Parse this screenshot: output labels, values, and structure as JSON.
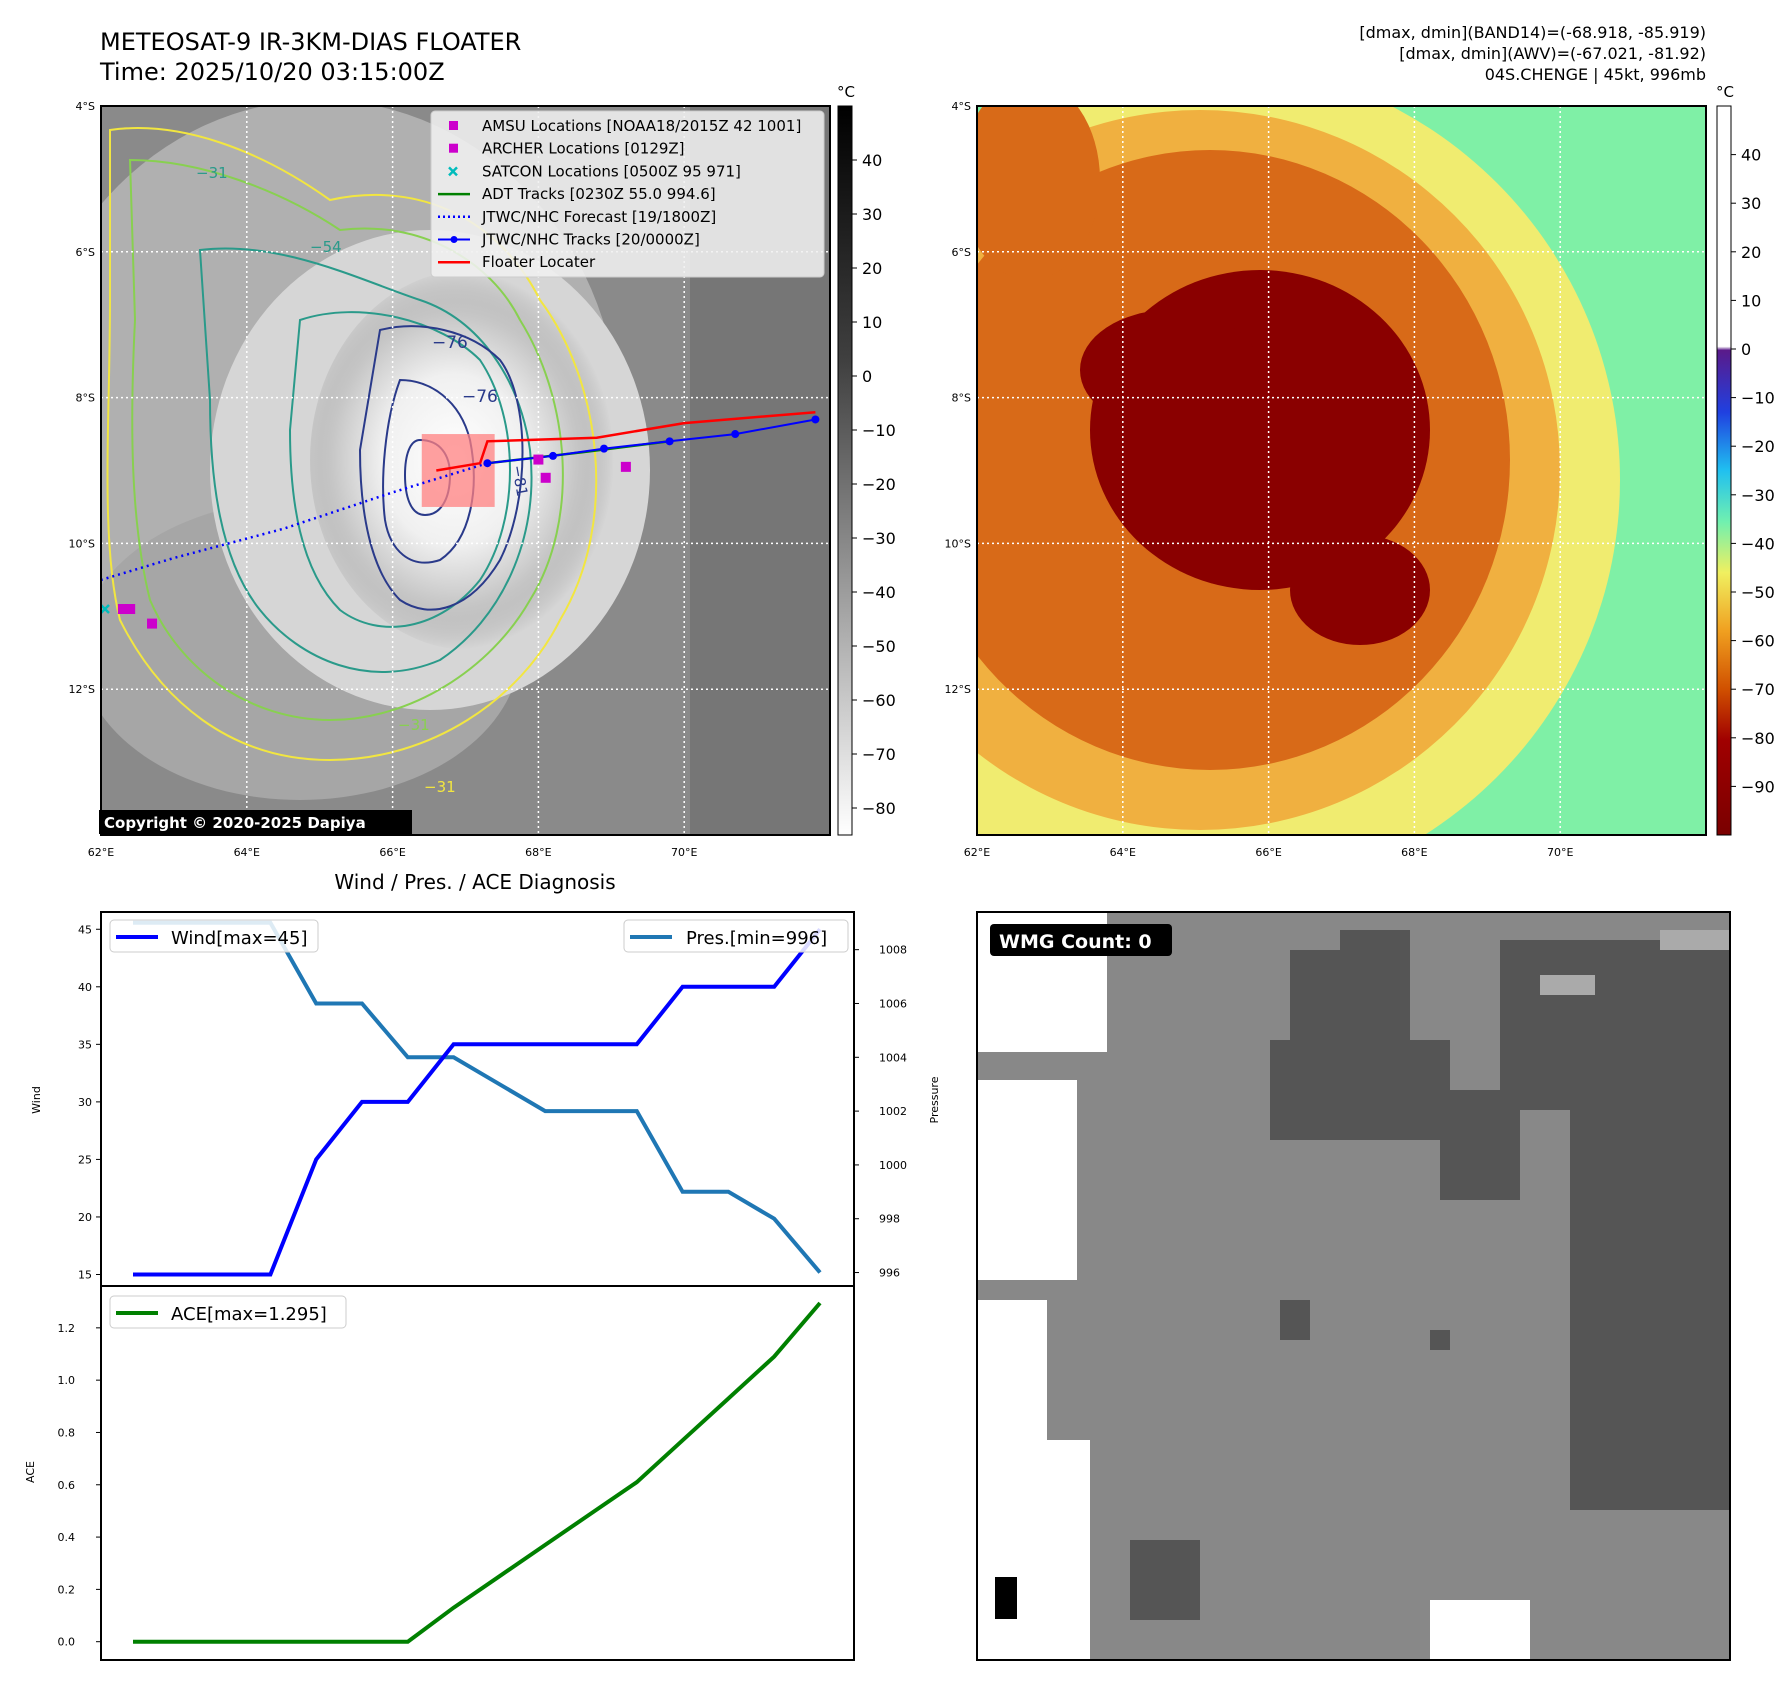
{
  "header": {
    "title_line1": "METEOSAT-9 IR-3KM-DIAS FLOATER",
    "title_line2": "Time: 2025/10/20 03:15:00Z",
    "info_line1": "[dmax, dmin](BAND14)=(-68.918, -85.919)",
    "info_line2": "[dmax, dmin](AWV)=(-67.021, -81.92)",
    "info_line3": "04S.CHENGE | 45kt, 996mb"
  },
  "map_axes": {
    "lat_labels": [
      "4°S",
      "6°S",
      "8°S",
      "10°S",
      "12°S"
    ],
    "lat_values": [
      -4,
      -6,
      -8,
      -10,
      -12
    ],
    "lon_labels": [
      "62°E",
      "64°E",
      "66°E",
      "68°E",
      "70°E"
    ],
    "lon_values": [
      62,
      64,
      66,
      68,
      70
    ],
    "lat_range": [
      -14,
      -4
    ],
    "lon_range": [
      62,
      72
    ]
  },
  "ir_panel": {
    "colorbar_unit": "°C",
    "colorbar_ticks": [
      40,
      30,
      20,
      10,
      0,
      -10,
      -20,
      -30,
      -40,
      -50,
      -60,
      -70,
      -80
    ],
    "colorbar_range": [
      -85,
      50
    ],
    "contour_labels": [
      "−76",
      "−76",
      "−81",
      "−31",
      "−54",
      "−31",
      "−31"
    ],
    "copyright": "Copyright © 2020-2025 Dapiya",
    "legend": [
      {
        "label": "AMSU Locations [NOAA18/2015Z 42 1001]",
        "marker": "square",
        "color": "#cc00cc"
      },
      {
        "label": "ARCHER Locations [0129Z]",
        "marker": "square",
        "color": "#cc00cc"
      },
      {
        "label": "SATCON Locations [0500Z 95 971]",
        "marker": "x",
        "color": "#00bcbc"
      },
      {
        "label": "ADT Tracks [0230Z 55.0 994.6]",
        "marker": "line",
        "color": "#008000"
      },
      {
        "label": "JTWC/NHC Forecast [19/1800Z]",
        "marker": "dotted",
        "color": "#0000ff"
      },
      {
        "label": "JTWC/NHC Tracks [20/0000Z]",
        "marker": "line-dot",
        "color": "#0000ff"
      },
      {
        "label": "Floater Locater",
        "marker": "line",
        "color": "#ff0000"
      }
    ],
    "jtwc_track": [
      [
        71.8,
        -8.3
      ],
      [
        70.7,
        -8.5
      ],
      [
        69.8,
        -8.6
      ],
      [
        68.9,
        -8.7
      ],
      [
        68.2,
        -8.8
      ],
      [
        67.3,
        -8.9
      ]
    ],
    "jtwc_forecast": [
      [
        67.3,
        -8.9
      ],
      [
        66.0,
        -9.3
      ],
      [
        64.5,
        -9.8
      ],
      [
        63.0,
        -10.2
      ],
      [
        62.0,
        -10.5
      ]
    ],
    "adt_track": [
      [
        69.8,
        -8.6
      ],
      [
        68.6,
        -8.75
      ],
      [
        67.3,
        -8.9
      ]
    ],
    "floater_track": [
      [
        71.8,
        -8.2
      ],
      [
        70.0,
        -8.35
      ],
      [
        68.8,
        -8.55
      ],
      [
        67.3,
        -8.6
      ],
      [
        67.2,
        -8.9
      ],
      [
        66.6,
        -9.0
      ]
    ],
    "amsu_points": [
      [
        62.3,
        -10.9
      ],
      [
        62.4,
        -10.9
      ],
      [
        62.7,
        -11.1
      ],
      [
        68.0,
        -8.85
      ],
      [
        68.1,
        -9.1
      ],
      [
        69.2,
        -8.95
      ]
    ],
    "satcon_points": [
      [
        62.0,
        -10.9
      ]
    ],
    "floater_box": {
      "lon": [
        66.4,
        67.4
      ],
      "lat": [
        -9.5,
        -8.5
      ]
    }
  },
  "awv_panel": {
    "colorbar_unit": "°C",
    "colorbar_ticks": [
      40,
      30,
      20,
      10,
      0,
      -10,
      -20,
      -30,
      -40,
      -50,
      -60,
      -70,
      -80,
      -90
    ],
    "colorbar_range": [
      -100,
      50
    ]
  },
  "chart_data": [
    {
      "type": "line",
      "title": "Wind / Pres. / ACE Diagnosis",
      "ylabel": "Wind",
      "y2label": "Pressure",
      "ylim": [
        14,
        46.5
      ],
      "y2lim": [
        995.5,
        1009.4
      ],
      "yticks": [
        15,
        20,
        25,
        30,
        35,
        40,
        45
      ],
      "y2ticks": [
        996,
        998,
        1000,
        1002,
        1004,
        1006,
        1008
      ],
      "series": [
        {
          "name": "Wind[max=45]",
          "color": "#0000ff",
          "axis": "left",
          "values": [
            15,
            15,
            15,
            15,
            25,
            30,
            30,
            35,
            35,
            35,
            35,
            35,
            40,
            40,
            40,
            45
          ]
        },
        {
          "name": "Pres.[min=996]",
          "color": "#1f77b4",
          "axis": "right",
          "values": [
            1009,
            1009,
            1009,
            1009,
            1006,
            1006,
            1004,
            1004,
            1003,
            1002,
            1002,
            1002,
            999,
            999,
            998,
            996
          ]
        }
      ]
    },
    {
      "type": "line",
      "ylabel": "ACE",
      "ylim": [
        -0.07,
        1.36
      ],
      "yticks": [
        0.0,
        0.2,
        0.4,
        0.6,
        0.8,
        1.0,
        1.2
      ],
      "ytick_labels": [
        "0.0",
        "0.2",
        "0.4",
        "0.6",
        "0.8",
        "1.0",
        "1.2"
      ],
      "series": [
        {
          "name": "ACE[max=1.295]",
          "color": "#008000",
          "values": [
            0,
            0,
            0,
            0,
            0,
            0,
            0,
            0.13,
            0.25,
            0.37,
            0.49,
            0.61,
            0.77,
            0.93,
            1.09,
            1.295
          ]
        }
      ]
    }
  ],
  "wmg_panel": {
    "badge": "WMG Count: 0",
    "colors": {
      "dark": "#555555",
      "mid": "#888888",
      "light": "#aaaaaa",
      "white": "#ffffff",
      "black": "#000000"
    }
  }
}
